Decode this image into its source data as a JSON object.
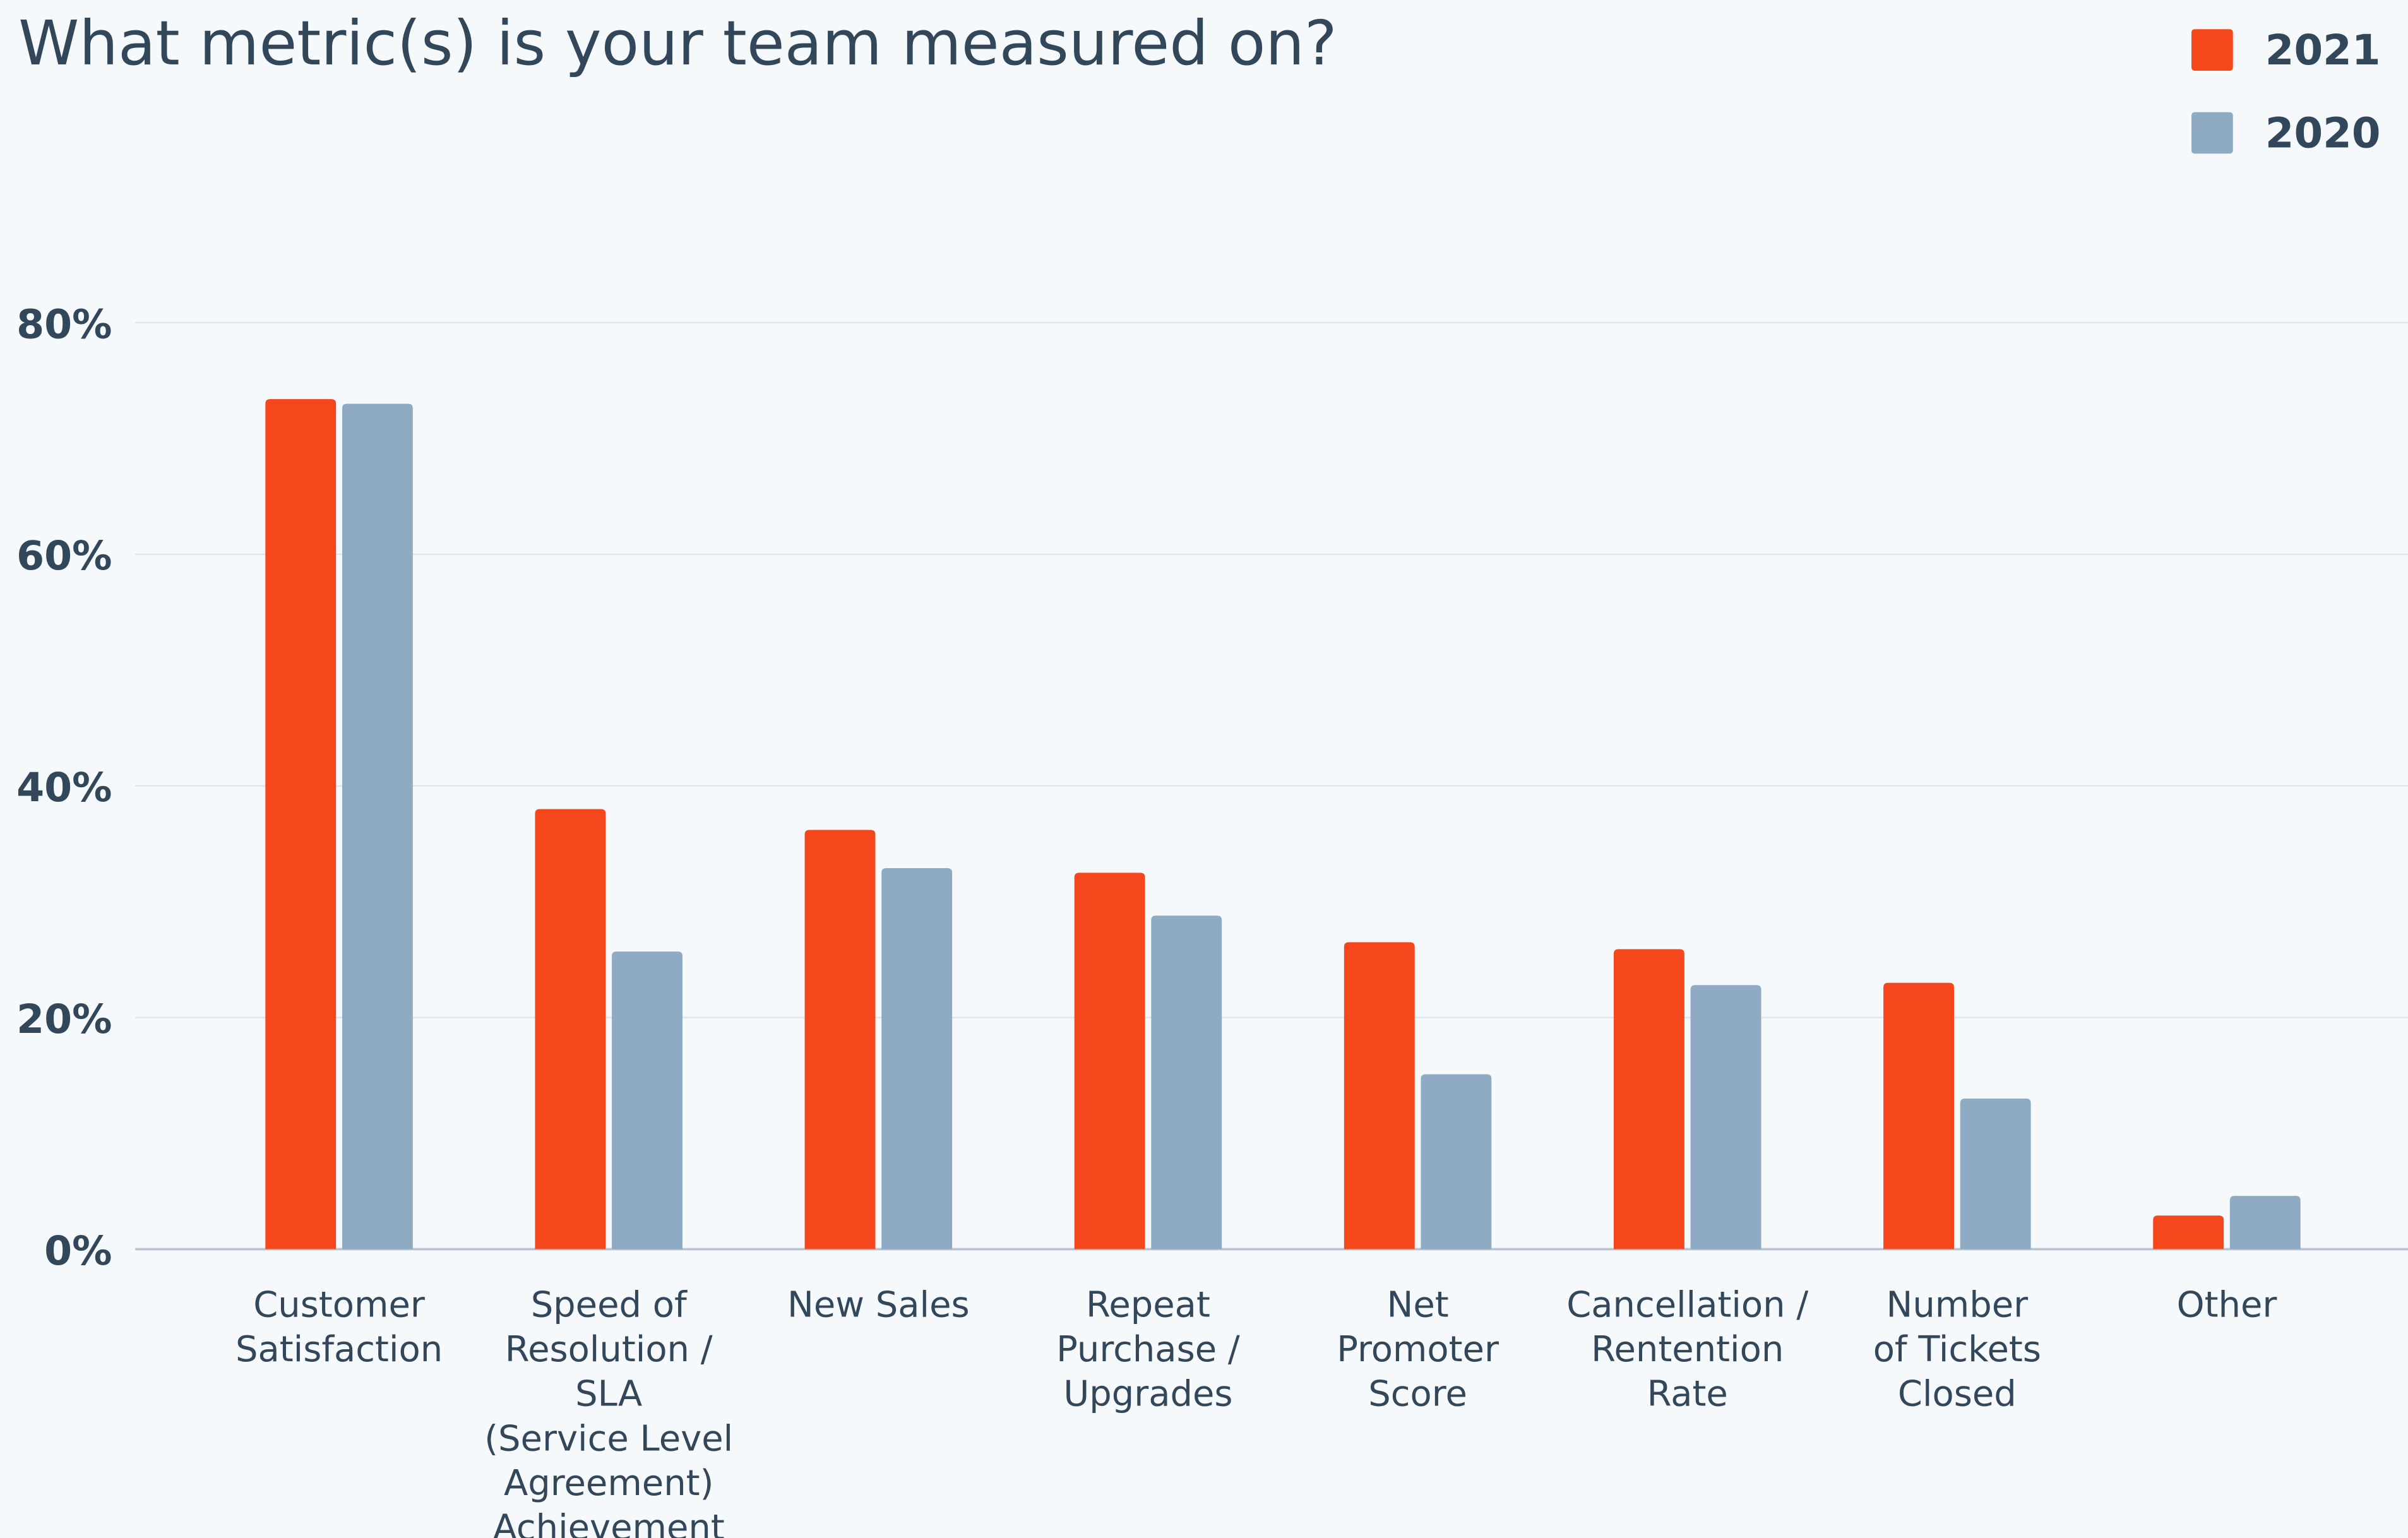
{
  "chart_data": {
    "type": "bar",
    "title": "What metric(s) is your team measured on?",
    "categories": [
      "Customer\nSatisfaction",
      "Speed of\nResolution /\nSLA\n(Service Level\nAgreement)\nAchievement",
      "New Sales",
      "Repeat\nPurchase /\nUpgrades",
      "Net\nPromoter\nScore",
      "Cancellation /\nRentention\nRate",
      "Number\nof Tickets\nClosed",
      "Other"
    ],
    "series": [
      {
        "name": "2021",
        "color": "#f5471b",
        "values": [
          73.4,
          38,
          36.2,
          32.5,
          26.5,
          25.9,
          23,
          2.9
        ]
      },
      {
        "name": "2020",
        "color": "#8faac3",
        "values": [
          73,
          25.7,
          32.9,
          28.8,
          15.1,
          22.8,
          13,
          4.6
        ]
      }
    ],
    "ylim": [
      0,
      80
    ],
    "yticks": [
      {
        "value": 0,
        "label": "0%"
      },
      {
        "value": 20,
        "label": "20%"
      },
      {
        "value": 40,
        "label": "40%"
      },
      {
        "value": 60,
        "label": "60%"
      },
      {
        "value": 80,
        "label": "80%"
      }
    ],
    "grid": true,
    "legend": "top-right"
  }
}
